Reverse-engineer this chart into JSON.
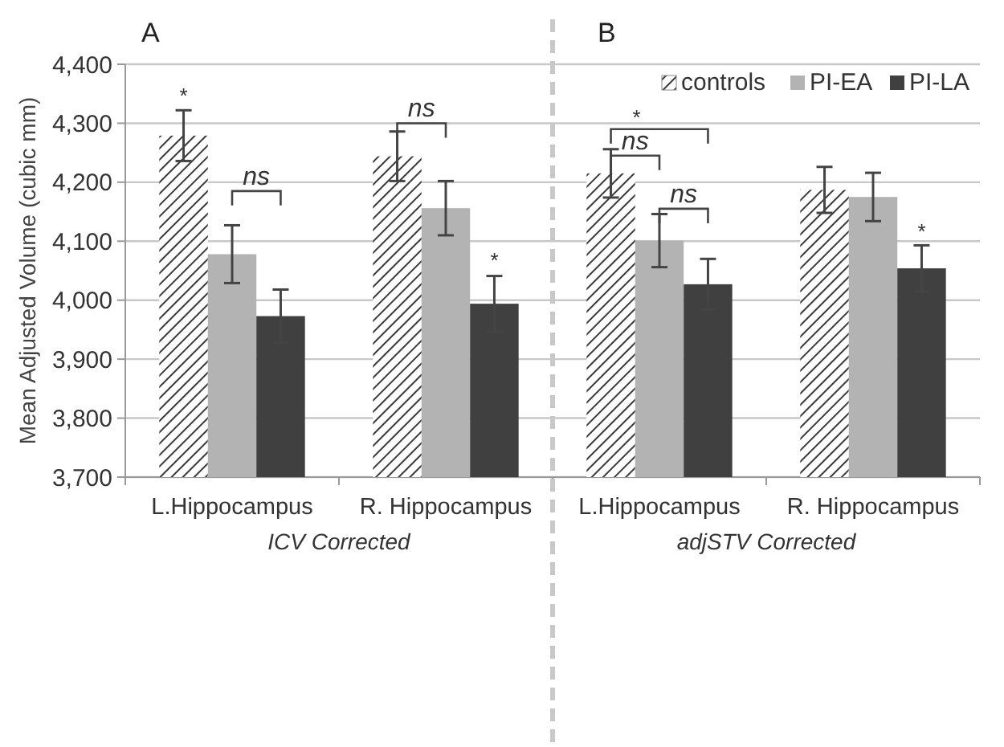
{
  "chart_data": {
    "type": "bar",
    "ylabel": "Mean Adjusted Volume (cubic mm)",
    "categories": [
      "L.Hippocampus",
      "R. Hippocampus",
      "L.Hippocampus",
      "R. Hippocampus"
    ],
    "series": [
      {
        "name": "controls",
        "color": "#3a3a3a",
        "values": [
          4279,
          4244,
          4215,
          4187
        ],
        "errors": [
          43,
          42,
          41,
          39
        ]
      },
      {
        "name": "PI-EA",
        "color": "#b3b3b3",
        "values": [
          4078,
          4156,
          4101,
          4175
        ],
        "errors": [
          49,
          46,
          45,
          41
        ]
      },
      {
        "name": "PI-LA",
        "color": "#404040",
        "values": [
          3973,
          3994,
          4027,
          4054
        ],
        "errors": [
          45,
          47,
          43,
          39
        ]
      }
    ],
    "ylim": [
      3700,
      4400
    ],
    "yticks": [
      {
        "value": 3700,
        "label": "3,700"
      },
      {
        "value": 3800,
        "label": "3,800"
      },
      {
        "value": 3900,
        "label": "3,900"
      },
      {
        "value": 4000,
        "label": "4,000"
      },
      {
        "value": 4100,
        "label": "4,100"
      },
      {
        "value": 4200,
        "label": "4,200"
      },
      {
        "value": 4300,
        "label": "4,300"
      },
      {
        "value": 4400,
        "label": "4,400"
      }
    ],
    "grid": "y",
    "legend": "top right",
    "annotations": [
      "*",
      "ns",
      "ns",
      "*",
      "*",
      "ns",
      "ns",
      "*",
      "A",
      "B",
      "ICV Corrected",
      "adjSTV Corrected"
    ]
  }
}
